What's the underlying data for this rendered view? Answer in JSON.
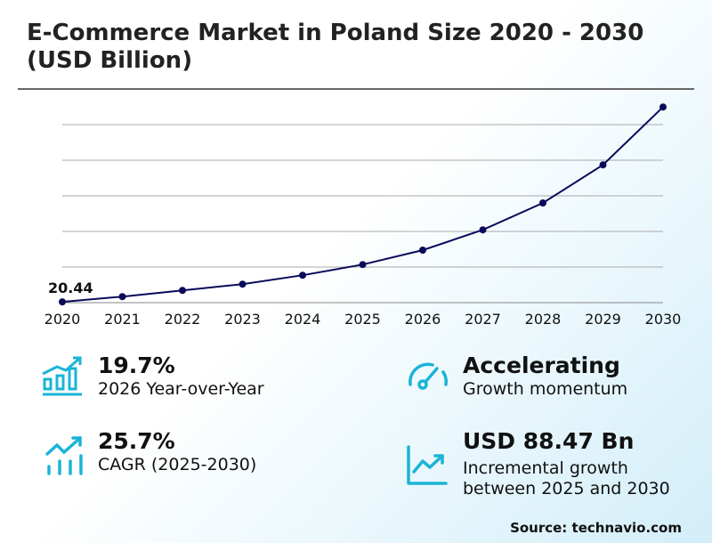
{
  "title_line1": "E-Commerce Market in Poland Size 2020 - 2030",
  "title_line2": "(USD Billion)",
  "chart_data": {
    "type": "line",
    "title": "E-Commerce Market in Poland Size 2020 - 2030 (USD Billion)",
    "xlabel": "",
    "ylabel": "USD Billion",
    "categories": [
      "2020",
      "2021",
      "2022",
      "2023",
      "2024",
      "2025",
      "2026",
      "2027",
      "2028",
      "2029",
      "2030"
    ],
    "values": [
      20.44,
      23.4,
      26.9,
      30.4,
      35.4,
      41.4,
      49.5,
      60.9,
      76.0,
      97.4,
      129.9
    ],
    "ylim": [
      20,
      130
    ],
    "grid": true,
    "annotations": [
      {
        "category": "2020",
        "label": "20.44"
      }
    ],
    "line_color": "#0a0a5a"
  },
  "stats": {
    "yoy": {
      "value": "19.7%",
      "label": "2026 Year-over-Year"
    },
    "momentum": {
      "value": "Accelerating",
      "label": "Growth momentum"
    },
    "cagr": {
      "value": "25.7%",
      "label": "CAGR (2025-2030)"
    },
    "incremental": {
      "value": "USD 88.47 Bn",
      "label_line1": "Incremental growth",
      "label_line2": "between 2025 and 2030"
    }
  },
  "icon_color": "#1ab4d7",
  "source": "Source: technavio.com"
}
